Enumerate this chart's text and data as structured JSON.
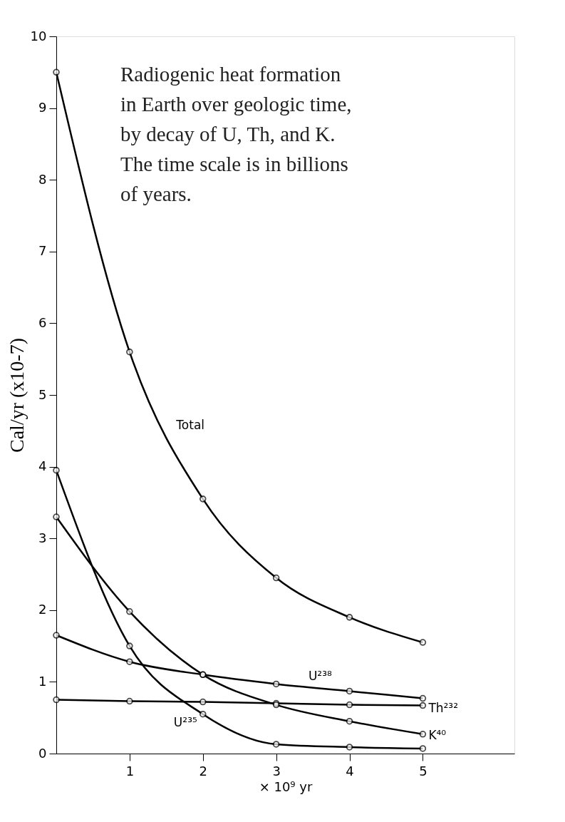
{
  "chart_data": {
    "type": "line",
    "ylabel": "Cal/yr (x10-7)",
    "xlabel": "× 10⁹ yr",
    "annotations": [
      "Radiogenic heat formation\nin Earth over geologic time,\nby decay of U, Th, and K.\nThe time scale is in billions\nof years."
    ],
    "x": [
      0,
      1,
      2,
      3,
      4,
      5
    ],
    "series": [
      {
        "name": "Total",
        "color": "#000000",
        "values": [
          9.5,
          5.6,
          3.55,
          2.45,
          1.9,
          1.55
        ]
      },
      {
        "name": "U²³⁸",
        "color": "#000000",
        "values": [
          1.65,
          1.28,
          1.1,
          0.97,
          0.87,
          0.77
        ]
      },
      {
        "name": "Th²³²",
        "color": "#000000",
        "values": [
          0.75,
          0.73,
          0.72,
          0.7,
          0.68,
          0.67
        ]
      },
      {
        "name": "K⁴⁰",
        "color": "#000000",
        "values": [
          3.3,
          1.98,
          1.1,
          0.68,
          0.45,
          0.27
        ]
      },
      {
        "name": "U²³⁵",
        "color": "#000000",
        "values": [
          3.95,
          1.5,
          0.55,
          0.13,
          0.09,
          0.07
        ]
      }
    ],
    "xlim": [
      0,
      6.25
    ],
    "xticks": [
      1,
      2,
      3,
      4,
      5
    ],
    "ylim": [
      0,
      10
    ],
    "yticks": [
      0,
      1,
      2,
      3,
      4,
      5,
      6,
      7,
      8,
      9,
      10
    ],
    "grid": false,
    "legend": false,
    "marker": "circle",
    "line_style": "solid"
  }
}
